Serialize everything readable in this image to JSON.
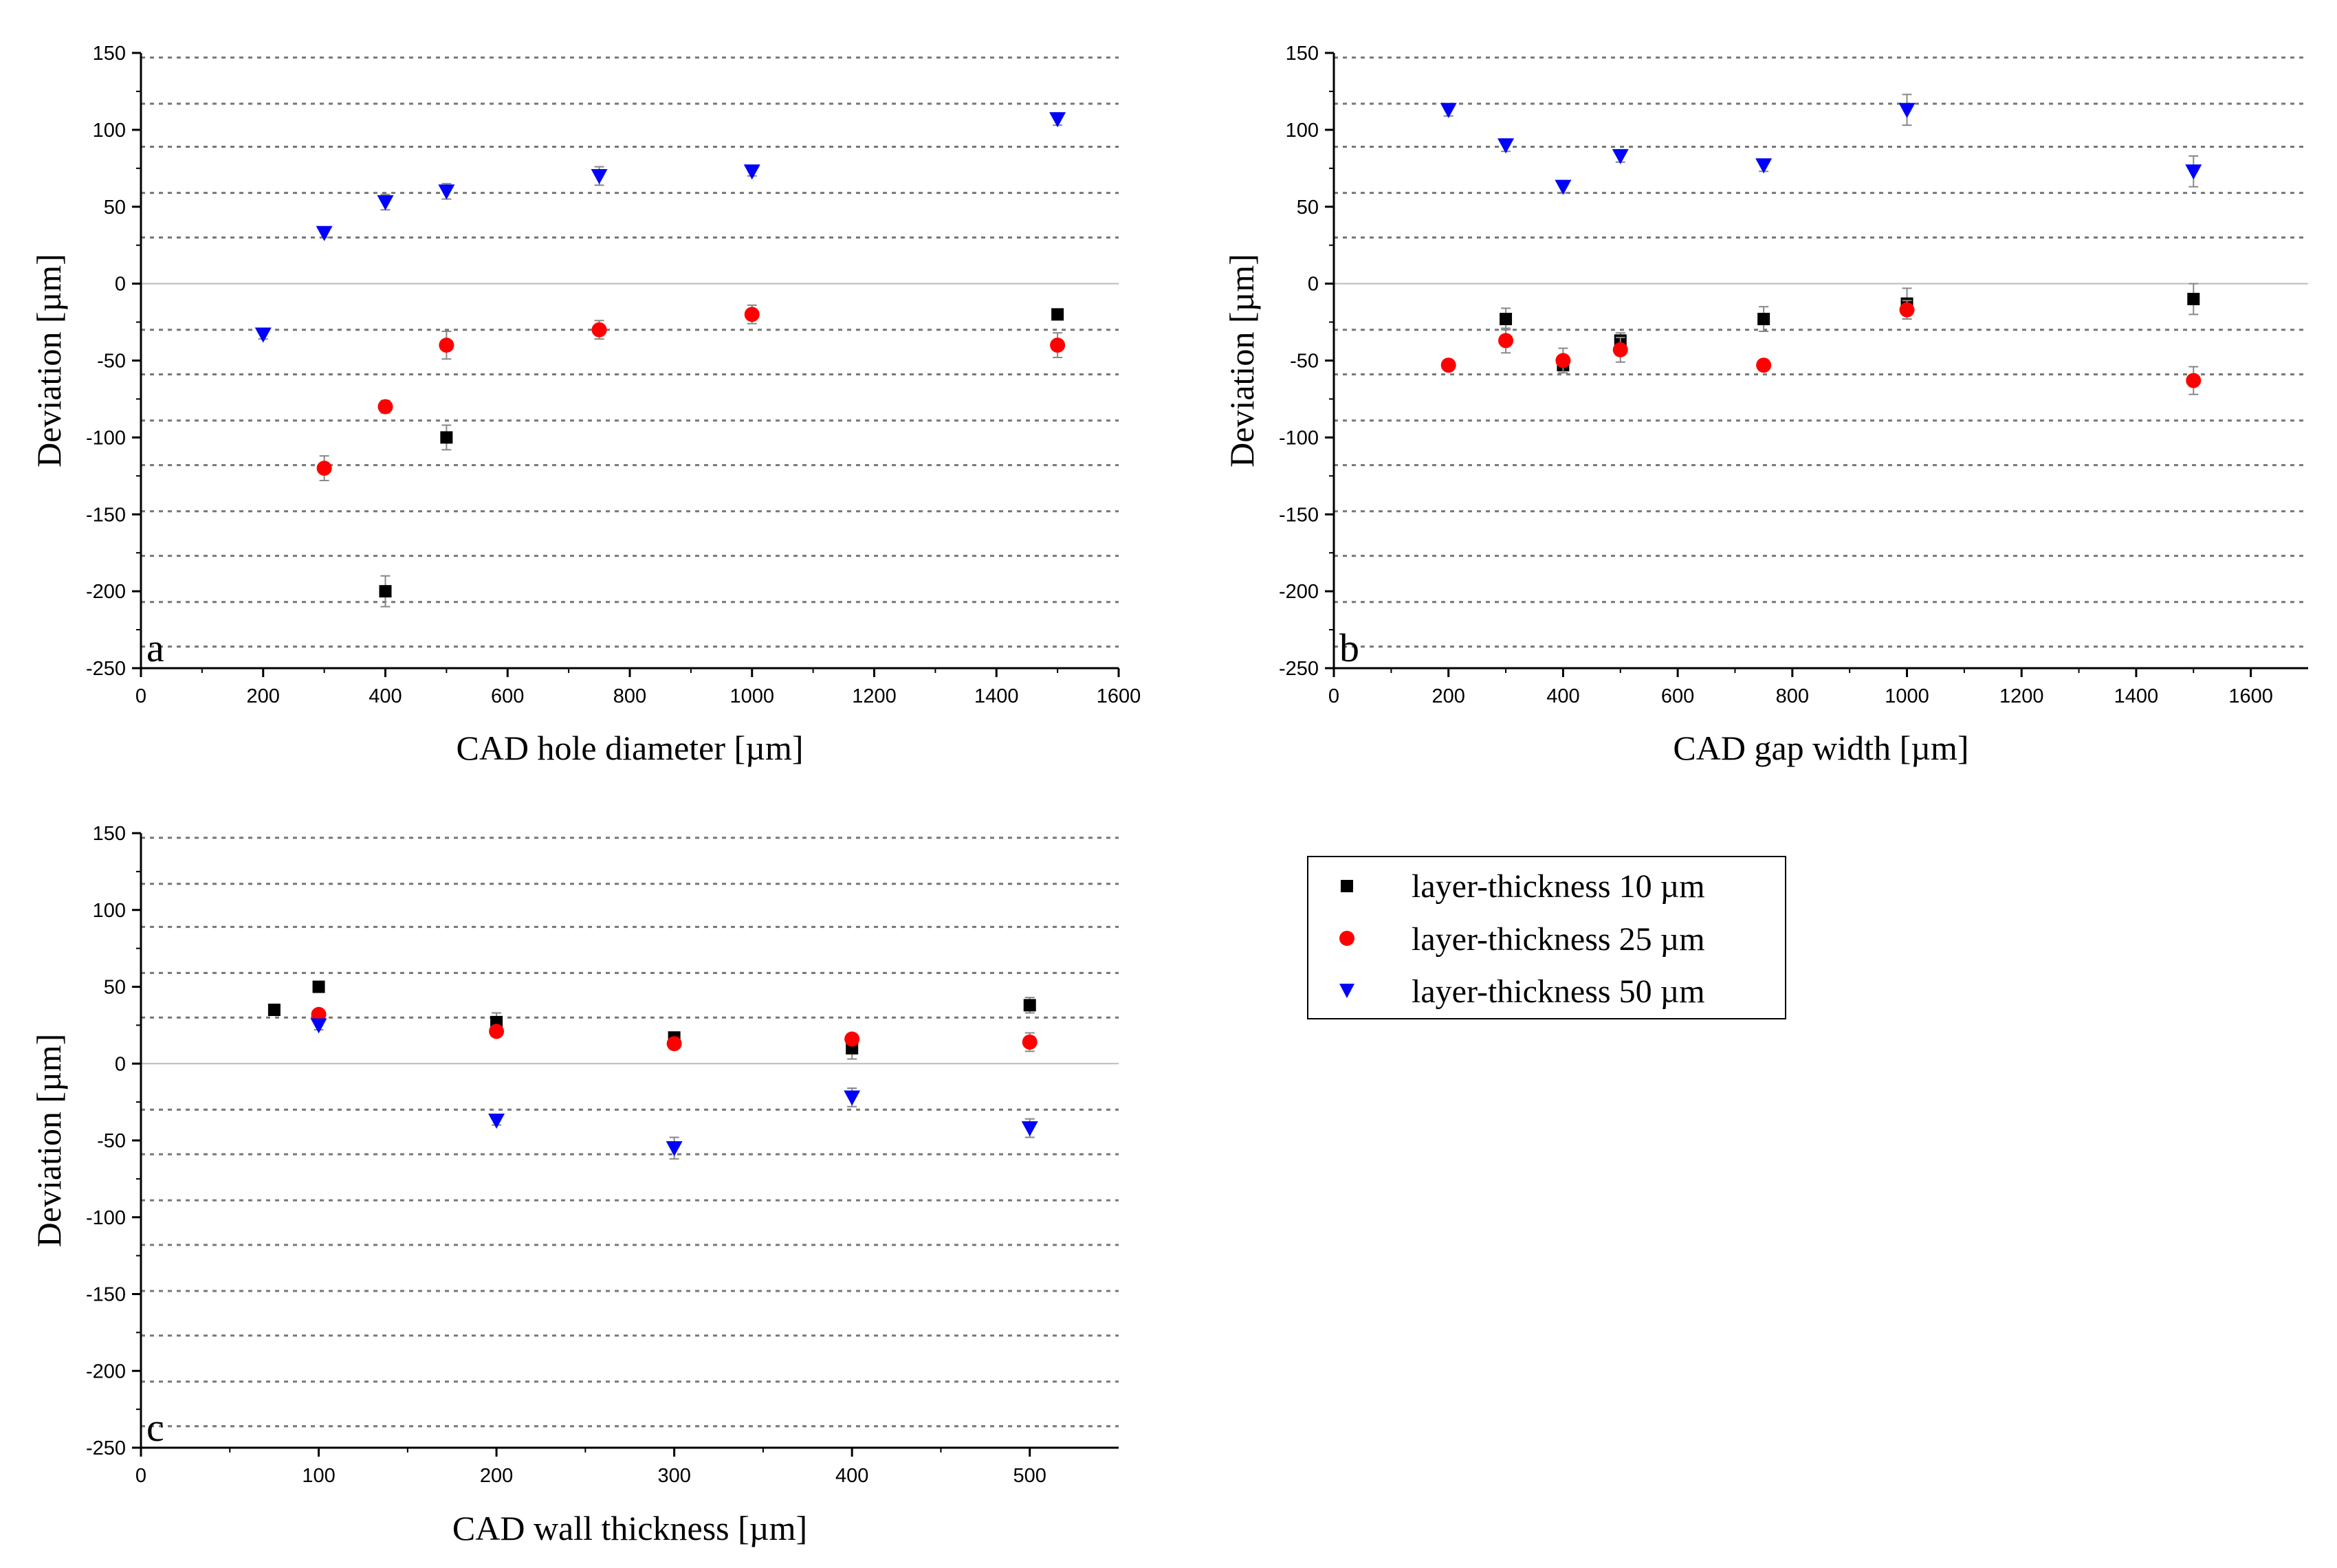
{
  "chart_data": [
    {
      "type": "scatter",
      "panel": "a",
      "xlabel": "CAD hole diameter [µm]",
      "ylabel": "Deviation [µm]",
      "xlim": [
        0,
        1600
      ],
      "ylim": [
        -250,
        150
      ],
      "xticks": [
        0,
        200,
        400,
        600,
        800,
        1000,
        1200,
        1400,
        1600
      ],
      "yticks": [
        -250,
        -200,
        -150,
        -100,
        -50,
        0,
        50,
        100,
        150
      ],
      "grid": "horizontal dotted",
      "series": [
        {
          "name": "layer-thickness 10 µm",
          "x": [
            400,
            500,
            1500
          ],
          "y": [
            -200,
            -100,
            -20
          ],
          "err": [
            10,
            8,
            3
          ]
        },
        {
          "name": "layer-thickness 25 µm",
          "x": [
            300,
            400,
            500,
            750,
            1000,
            1500
          ],
          "y": [
            -120,
            -80,
            -40,
            -30,
            -20,
            -40
          ],
          "err": [
            8,
            4,
            9,
            6,
            6,
            8
          ]
        },
        {
          "name": "layer-thickness 50 µm",
          "x": [
            200,
            300,
            400,
            500,
            750,
            1000,
            1500
          ],
          "y": [
            -33,
            33,
            53,
            60,
            70,
            73,
            107
          ],
          "err": [
            3,
            3,
            5,
            5,
            6,
            3,
            4
          ]
        }
      ]
    },
    {
      "type": "scatter",
      "panel": "b",
      "xlabel": "CAD gap width [µm]",
      "ylabel": "Deviation [µm]",
      "xlim": [
        0,
        1700
      ],
      "ylim": [
        -250,
        150
      ],
      "xticks": [
        0,
        200,
        400,
        600,
        800,
        1000,
        1200,
        1400,
        1600
      ],
      "yticks": [
        -250,
        -200,
        -150,
        -100,
        -50,
        0,
        50,
        100,
        150
      ],
      "grid": "horizontal dotted",
      "series": [
        {
          "name": "layer-thickness 10 µm",
          "x": [
            300,
            400,
            500,
            750,
            1000,
            1500
          ],
          "y": [
            -23,
            -53,
            -37,
            -23,
            -13,
            -10
          ],
          "err": [
            7,
            5,
            5,
            8,
            10,
            10
          ]
        },
        {
          "name": "layer-thickness 25 µm",
          "x": [
            200,
            300,
            400,
            500,
            750,
            1000,
            1500
          ],
          "y": [
            -53,
            -37,
            -50,
            -43,
            -53,
            -17,
            -63
          ],
          "err": [
            3,
            8,
            8,
            8,
            3,
            6,
            9
          ]
        },
        {
          "name": "layer-thickness 50 µm",
          "x": [
            200,
            300,
            400,
            500,
            750,
            1000,
            1500
          ],
          "y": [
            113,
            90,
            63,
            83,
            77,
            113,
            73
          ],
          "err": [
            4,
            4,
            4,
            4,
            4,
            10,
            10
          ]
        }
      ]
    },
    {
      "type": "scatter",
      "panel": "c",
      "xlabel": "CAD wall thickness [µm]",
      "ylabel": "Deviation [µm]",
      "xlim": [
        0,
        550
      ],
      "ylim": [
        -250,
        150
      ],
      "xticks": [
        0,
        100,
        200,
        300,
        400,
        500
      ],
      "yticks": [
        -250,
        -200,
        -150,
        -100,
        -50,
        0,
        50,
        100,
        150
      ],
      "grid": "horizontal dotted",
      "series": [
        {
          "name": "layer-thickness 10 µm",
          "x": [
            75,
            100,
            200,
            300,
            400,
            500
          ],
          "y": [
            35,
            50,
            27,
            17,
            10,
            38
          ],
          "err": [
            3,
            3,
            6,
            3,
            7,
            5
          ]
        },
        {
          "name": "layer-thickness 25 µm",
          "x": [
            100,
            200,
            300,
            400,
            500
          ],
          "y": [
            32,
            21,
            13,
            16,
            14
          ],
          "err": [
            3,
            3,
            3,
            3,
            6
          ]
        },
        {
          "name": "layer-thickness 50 µm",
          "x": [
            100,
            200,
            300,
            400,
            500
          ],
          "y": [
            25,
            -37,
            -55,
            -22,
            -42
          ],
          "err": [
            3,
            3,
            7,
            6,
            6
          ]
        }
      ]
    }
  ],
  "legend": {
    "items": [
      {
        "label": "layer-thickness 10 µm",
        "marker": "square",
        "color": "#000000"
      },
      {
        "label": "layer-thickness 25 µm",
        "marker": "circle",
        "color": "#ff0000"
      },
      {
        "label": "layer-thickness 50 µm",
        "marker": "triangle-down",
        "color": "#0000ff"
      }
    ]
  },
  "series_colors": [
    "#000000",
    "#ff0000",
    "#0000ff"
  ],
  "series_markers": [
    "square",
    "circle",
    "triangle-down"
  ]
}
